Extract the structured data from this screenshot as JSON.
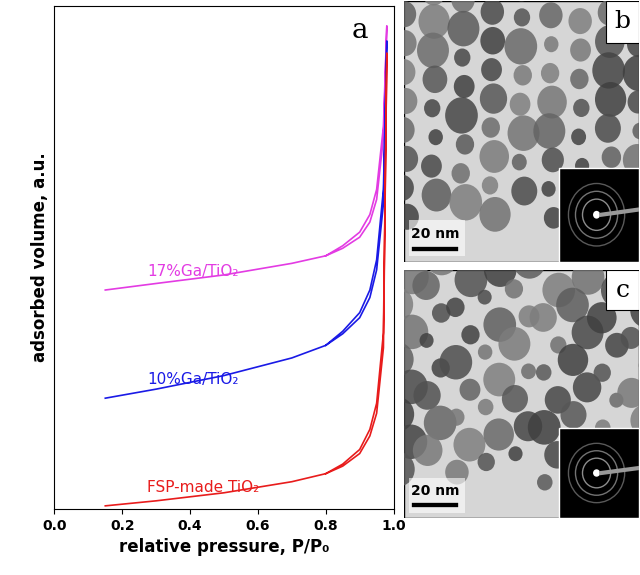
{
  "chart_data": {
    "type": "line",
    "panel_label": "a",
    "x_label": "relative pressure, P/P₀",
    "y_label": "adsorbed volume, a.u.",
    "xlim": [
      0.0,
      1.0
    ],
    "xticks": [
      0.0,
      0.2,
      0.4,
      0.6,
      0.8,
      1.0
    ],
    "ylim": [
      0,
      100
    ],
    "yticks": [],
    "tick_labels": "x",
    "series": [
      {
        "name": "17%Ga/TiO₂",
        "color": "#e33be3",
        "x": [
          0.15,
          0.3,
          0.5,
          0.7,
          0.8,
          0.85,
          0.9,
          0.93,
          0.95,
          0.97,
          0.98,
          0.97,
          0.95,
          0.93,
          0.9,
          0.85,
          0.8
        ],
        "values": [
          43.5,
          44.8,
          46.5,
          48.8,
          50.3,
          51.8,
          54.0,
          57.0,
          61.5,
          73.7,
          96.0,
          76.0,
          63.5,
          58.5,
          55.0,
          52.3,
          50.3
        ]
      },
      {
        "name": "10%Ga/TiO₂",
        "color": "#1a1ae6",
        "x": [
          0.15,
          0.3,
          0.5,
          0.7,
          0.8,
          0.85,
          0.9,
          0.93,
          0.95,
          0.97,
          0.98,
          0.97,
          0.95,
          0.93,
          0.9,
          0.85,
          0.8
        ],
        "values": [
          22.0,
          23.8,
          26.5,
          30.0,
          32.5,
          34.8,
          38.0,
          42.0,
          47.5,
          60.6,
          93.0,
          63.5,
          49.5,
          43.5,
          39.0,
          35.3,
          32.5
        ]
      },
      {
        "name": "FSP-made TiO₂",
        "color": "#e81c1c",
        "x": [
          0.15,
          0.3,
          0.5,
          0.7,
          0.8,
          0.85,
          0.9,
          0.93,
          0.95,
          0.97,
          0.98,
          0.97,
          0.95,
          0.93,
          0.9,
          0.85,
          0.8
        ],
        "values": [
          0.6,
          1.6,
          3.2,
          5.4,
          7.0,
          8.5,
          11.0,
          14.5,
          19.0,
          32.0,
          90.6,
          35.0,
          21.0,
          15.8,
          11.8,
          8.9,
          7.0
        ]
      }
    ]
  },
  "tem_images": [
    {
      "panel_label": "b",
      "scale_bar": "20 nm"
    },
    {
      "panel_label": "c",
      "scale_bar": "20 nm"
    }
  ]
}
